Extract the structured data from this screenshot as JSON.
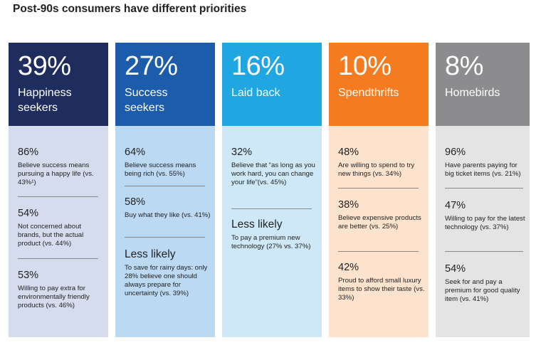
{
  "title": "Post-90s consumers have different priorities",
  "colors": {
    "happiness_head": "#1f2d5e",
    "happiness_body": "#d5dcee",
    "success_head": "#1d5bab",
    "success_body": "#bcd9f4",
    "laidback_head": "#20a6e0",
    "laidback_body": "#cfe8f7",
    "spend_head": "#f57b20",
    "spend_body": "#fde3cd",
    "homebirds_head": "#8c8c8e",
    "homebirds_body": "#e4e4e4"
  },
  "chart_data": {
    "type": "table",
    "title": "Post-90s consumers have different priorities",
    "segments": [
      {
        "percent": "39%",
        "name": "Happiness seekers",
        "value": 39,
        "stats": [
          {
            "figure": "86%",
            "text": "Believe success means pursuing a happy life (vs. 43%¹)"
          },
          {
            "figure": "54%",
            "text": "Not concerned about brands, but the actual product (vs. 44%)"
          },
          {
            "figure": "53%",
            "text": "Willing to pay extra for environmentally friendly products (vs. 46%)"
          }
        ]
      },
      {
        "percent": "27%",
        "name": "Success seekers",
        "value": 27,
        "stats": [
          {
            "figure": "64%",
            "text": "Believe success means being rich (vs. 55%)"
          },
          {
            "figure": "58%",
            "text": "Buy what they like (vs. 41%)"
          },
          {
            "figure": "Less likely",
            "text": "To save for rainy days: only 28% believe one should always prepare for uncertainty (vs. 39%)"
          }
        ]
      },
      {
        "percent": "16%",
        "name": "Laid back",
        "value": 16,
        "stats": [
          {
            "figure": "32%",
            "text": "Believe that “as long as you work hard, you can change your life”(vs. 45%)"
          },
          {
            "figure": "Less likely",
            "text": "To pay a premium new technology (27% vs. 37%)"
          }
        ]
      },
      {
        "percent": "10%",
        "name": "Spendthrifts",
        "value": 10,
        "stats": [
          {
            "figure": "48%",
            "text": "Are willing to spend to try new things (vs. 34%)"
          },
          {
            "figure": "38%",
            "text": "Believe expensive products are better (vs. 25%)"
          },
          {
            "figure": "42%",
            "text": "Proud to afford small luxury items to show their taste (vs. 33%)"
          }
        ]
      },
      {
        "percent": "8%",
        "name": "Homebirds",
        "value": 8,
        "stats": [
          {
            "figure": "96%",
            "text": "Have parents paying for big ticket items (vs. 21%)"
          },
          {
            "figure": "47%",
            "text": "Willing to pay for the latest technology (vs. 37%)"
          },
          {
            "figure": "54%",
            "text": "Seek for and pay a premium for good quality item (vs. 41%)"
          }
        ]
      }
    ]
  }
}
